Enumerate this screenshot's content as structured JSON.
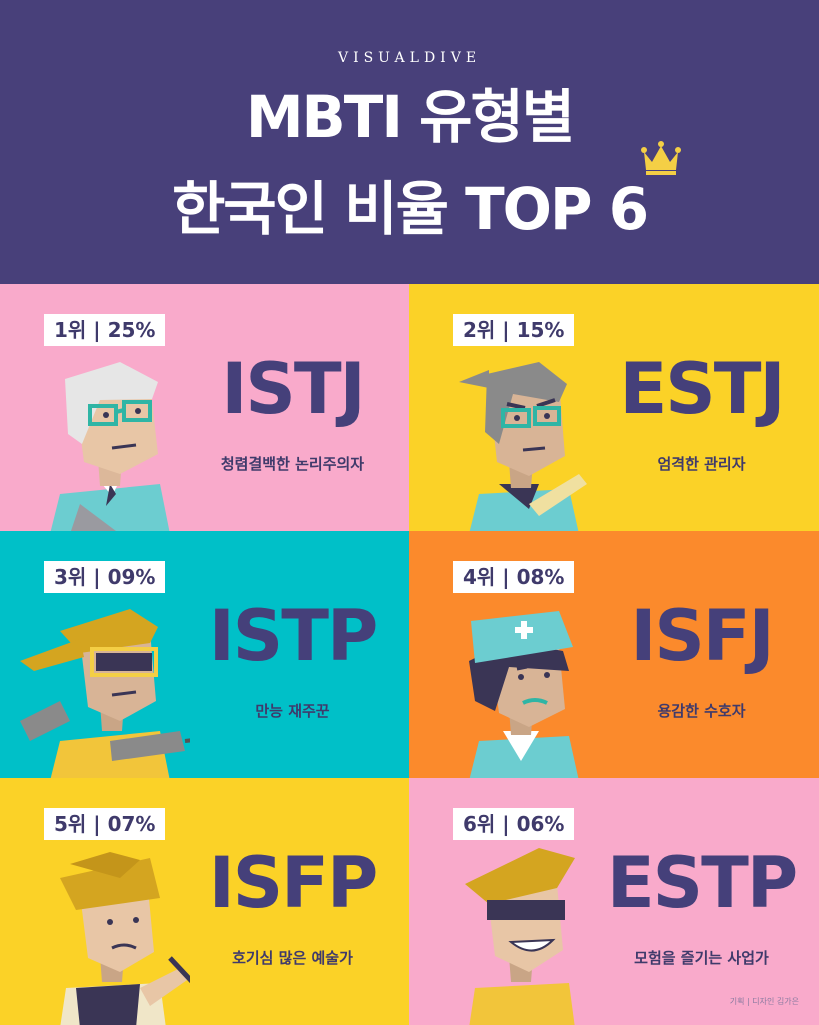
{
  "header": {
    "brand": "VISUALDIVE",
    "title_line1": "MBTI 유형별",
    "title_line2": "한국인 비율 TOP 6"
  },
  "colors": {
    "header_bg": "#48407a",
    "pink": "#f9aacb",
    "yellow": "#fbd227",
    "teal": "#00c0c8",
    "orange": "#fb8a2c",
    "text": "#45407a"
  },
  "cards": [
    {
      "rank": "1위",
      "percent": "25%",
      "type": "ISTJ",
      "description": "청렴결백한 논리주의자",
      "icon": "old-man-with-glasses"
    },
    {
      "rank": "2위",
      "percent": "15%",
      "type": "ESTJ",
      "description": "엄격한 관리자",
      "icon": "strict-manager-with-ruler"
    },
    {
      "rank": "3위",
      "percent": "09%",
      "type": "ISTP",
      "description": "만능 재주꾼",
      "icon": "builder-with-drill"
    },
    {
      "rank": "4위",
      "percent": "08%",
      "type": "ISFJ",
      "description": "용감한 수호자",
      "icon": "nurse"
    },
    {
      "rank": "5위",
      "percent": "07%",
      "type": "ISFP",
      "description": "호기심 많은 예술가",
      "icon": "artist-with-brush"
    },
    {
      "rank": "6위",
      "percent": "06%",
      "type": "ESTP",
      "description": "모험을 즐기는 사업가",
      "icon": "adventurer-with-sunglasses"
    }
  ],
  "credit": "기획 | 디자인 김가은"
}
